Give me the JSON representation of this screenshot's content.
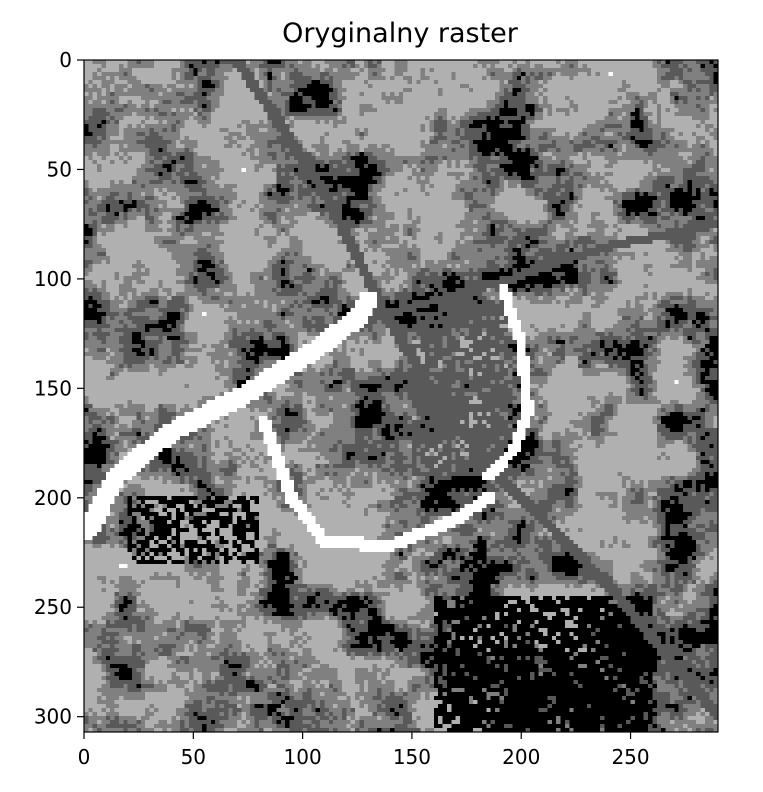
{
  "chart_data": {
    "type": "heatmap",
    "title": "Oryginalny raster",
    "colormap": "gray",
    "classes": 5,
    "palette": [
      "#000000",
      "#595959",
      "#808080",
      "#b0b0b0",
      "#ffffff"
    ],
    "xlim": [
      0,
      290
    ],
    "ylim": [
      307,
      0
    ],
    "x_ticks": [
      0,
      50,
      100,
      150,
      200,
      250
    ],
    "y_ticks": [
      0,
      50,
      100,
      150,
      200,
      250,
      300
    ],
    "x_tick_labels": [
      "0",
      "50",
      "100",
      "150",
      "200",
      "250"
    ],
    "y_tick_labels": [
      "0",
      "50",
      "100",
      "150",
      "200",
      "250",
      "300"
    ]
  }
}
